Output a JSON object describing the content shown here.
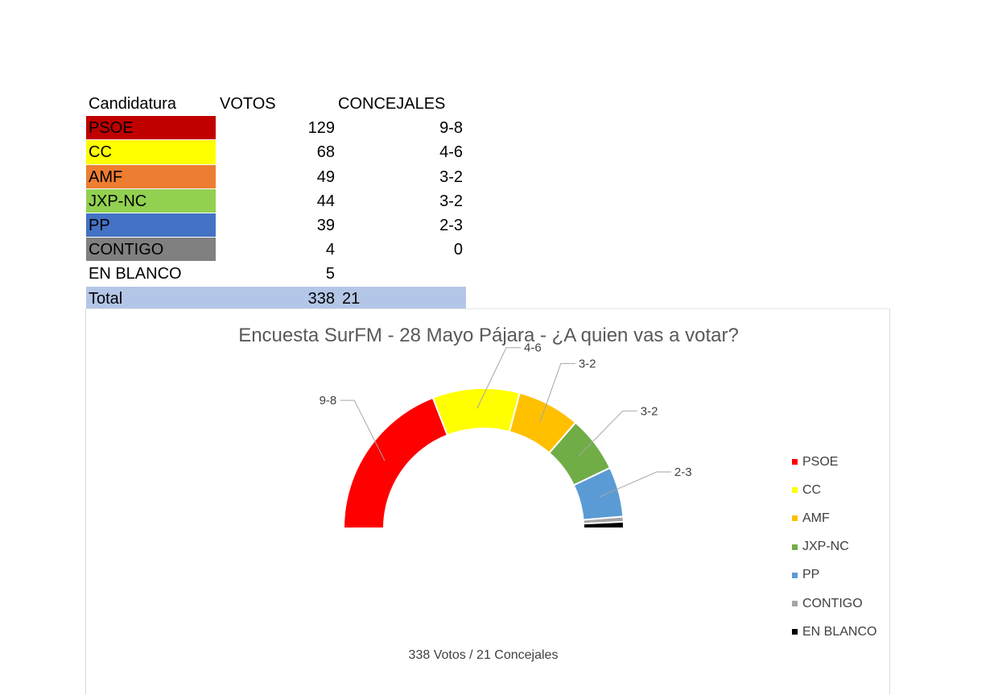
{
  "table": {
    "headers": [
      "Candidatura",
      "VOTOS",
      "CONCEJALES"
    ],
    "rows": [
      {
        "name": "PSOE",
        "votes": "129",
        "seats": "9-8",
        "color": "#c00000"
      },
      {
        "name": "CC",
        "votes": "68",
        "seats": "4-6",
        "color": "#ffff00"
      },
      {
        "name": "AMF",
        "votes": "49",
        "seats": "3-2",
        "color": "#ed7d31"
      },
      {
        "name": "JXP-NC",
        "votes": "44",
        "seats": "3-2",
        "color": "#92d050"
      },
      {
        "name": "PP",
        "votes": "39",
        "seats": "2-3",
        "color": "#4472c4"
      },
      {
        "name": "CONTIGO",
        "votes": "4",
        "seats": "0",
        "color": "#808080"
      },
      {
        "name": "EN BLANCO",
        "votes": "5",
        "seats": "",
        "color": "#ffffff"
      }
    ],
    "total": {
      "label": "Total",
      "votes": "338",
      "seats": "21"
    }
  },
  "chart_data": {
    "type": "pie",
    "subtype": "half-doughnut",
    "title": "Encuesta SurFM - 28 Mayo Pájara - ¿A quien vas a votar?",
    "subtitle": "338 Votos / 21 Concejales",
    "legend_position": "right",
    "categories": [
      "PSOE",
      "CC",
      "AMF",
      "JXP-NC",
      "PP",
      "CONTIGO",
      "EN BLANCO"
    ],
    "values": [
      129,
      68,
      49,
      44,
      39,
      4,
      5
    ],
    "data_labels": [
      "9-8",
      "4-6",
      "3-2",
      "3-2",
      "2-3",
      "",
      ""
    ],
    "colors": [
      "#ff0000",
      "#ffff00",
      "#ffc000",
      "#70ad47",
      "#5b9bd5",
      "#a5a5a5",
      "#000000"
    ]
  }
}
